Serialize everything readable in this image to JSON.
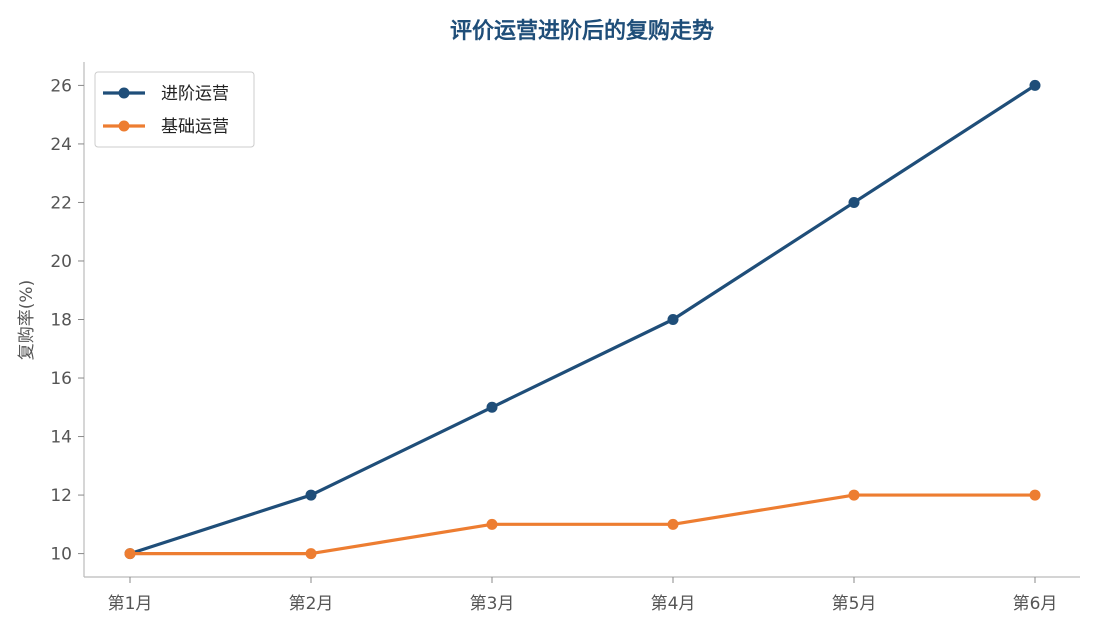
{
  "chart_data": {
    "type": "line",
    "title": "评价运营进阶后的复购走势",
    "xlabel": "",
    "ylabel": "复购率(%)",
    "categories": [
      "第1月",
      "第2月",
      "第3月",
      "第4月",
      "第5月",
      "第6月"
    ],
    "series": [
      {
        "name": "进阶运营",
        "values": [
          10,
          12,
          15,
          18,
          22,
          26
        ],
        "color": "#1f4e79"
      },
      {
        "name": "基础运营",
        "values": [
          10,
          10,
          11,
          11,
          12,
          12
        ],
        "color": "#ed7d31"
      }
    ],
    "ylim": [
      9.2,
      26.8
    ],
    "yticks": [
      10,
      12,
      14,
      16,
      18,
      20,
      22,
      24,
      26
    ],
    "grid": false,
    "legend_position": "top-left",
    "title_color": "#1f4e79"
  }
}
